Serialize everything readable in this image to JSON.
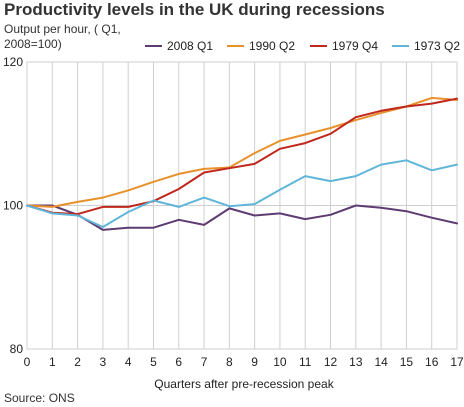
{
  "chart_data": {
    "type": "line",
    "title": "Productivity levels in the UK during recessions",
    "subtitle": "Output per hour, ( Q1, 2008=100)",
    "xlabel": "Quarters after pre-recession peak",
    "ylabel": "",
    "source": "Source: ONS",
    "x": [
      0,
      1,
      2,
      3,
      4,
      5,
      6,
      7,
      8,
      9,
      10,
      11,
      12,
      13,
      14,
      15,
      16,
      17
    ],
    "xlim": [
      0,
      17
    ],
    "ylim": [
      80,
      120
    ],
    "yticks": [
      80,
      100,
      120
    ],
    "grid": true,
    "legend_position": "top",
    "series": [
      {
        "name": "2008 Q1",
        "color": "#5e3c72",
        "values": [
          100,
          100,
          98.7,
          96.6,
          96.9,
          96.9,
          98.0,
          97.3,
          99.6,
          98.6,
          98.9,
          98.1,
          98.7,
          100.0,
          99.7,
          99.2,
          98.3,
          97.5
        ]
      },
      {
        "name": "1990 Q2",
        "color": "#e8902a",
        "values": [
          100,
          99.8,
          100.5,
          101.1,
          102.1,
          103.3,
          104.4,
          105.1,
          105.3,
          107.3,
          109.0,
          109.9,
          110.8,
          111.9,
          112.9,
          113.8,
          115.0,
          114.7
        ]
      },
      {
        "name": "1979 Q4",
        "color": "#c0271d",
        "values": [
          100,
          99.0,
          98.8,
          99.8,
          99.8,
          100.6,
          102.3,
          104.6,
          105.2,
          105.8,
          107.9,
          108.7,
          110.0,
          112.3,
          113.2,
          113.8,
          114.2,
          114.9
        ]
      },
      {
        "name": "1973 Q2",
        "color": "#5fb6d9",
        "values": [
          100,
          98.9,
          98.6,
          97.0,
          99.1,
          100.7,
          99.8,
          101.1,
          99.9,
          100.2,
          102.2,
          104.1,
          103.4,
          104.1,
          105.7,
          106.3,
          104.9,
          105.7
        ]
      }
    ]
  }
}
